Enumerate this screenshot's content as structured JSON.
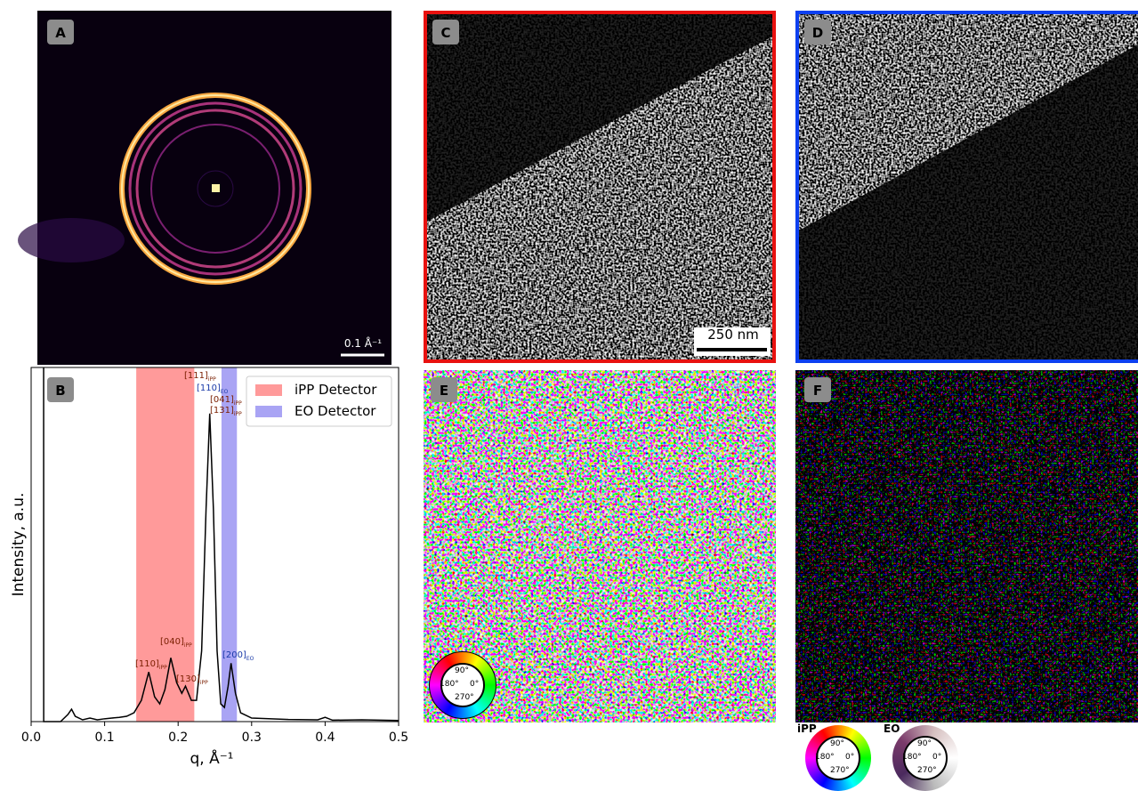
{
  "panels": {
    "A": {
      "label": "A",
      "scale_bar": "0.1 Å⁻¹"
    },
    "B": {
      "label": "B"
    },
    "C": {
      "label": "C",
      "scale_bar": "250 nm"
    },
    "D": {
      "label": "D"
    },
    "E": {
      "label": "E"
    },
    "F": {
      "label": "F",
      "wheels": [
        "iPP",
        "EO"
      ]
    }
  },
  "wheel_labels": [
    "90°",
    "180°",
    "0°",
    "270°"
  ],
  "chart_data": {
    "type": "line",
    "xlabel": "q, Å⁻¹",
    "ylabel": "Intensity, a.u.",
    "color": "#000000",
    "x": [
      0.017,
      0.0171,
      0.02,
      0.04,
      0.05,
      0.055,
      0.06,
      0.07,
      0.08,
      0.09,
      0.1,
      0.11,
      0.12,
      0.13,
      0.14,
      0.15,
      0.16,
      0.168,
      0.175,
      0.182,
      0.19,
      0.198,
      0.205,
      0.21,
      0.218,
      0.225,
      0.232,
      0.238,
      0.243,
      0.248,
      0.253,
      0.258,
      0.263,
      0.268,
      0.272,
      0.278,
      0.285,
      0.3,
      0.35,
      0.39,
      0.4,
      0.41,
      0.45,
      0.5
    ],
    "values": [
      1.0,
      0.0,
      0.0,
      0.0,
      0.02,
      0.035,
      0.015,
      0.005,
      0.01,
      0.005,
      0.008,
      0.01,
      0.012,
      0.015,
      0.025,
      0.06,
      0.14,
      0.07,
      0.05,
      0.09,
      0.18,
      0.11,
      0.08,
      0.1,
      0.06,
      0.06,
      0.2,
      0.6,
      0.87,
      0.6,
      0.2,
      0.05,
      0.04,
      0.1,
      0.165,
      0.08,
      0.025,
      0.01,
      0.006,
      0.005,
      0.012,
      0.004,
      0.005,
      0.003
    ],
    "xlim": [
      0,
      0.5
    ],
    "ylim": [
      0,
      1
    ],
    "xticks": [
      {
        "value": 0,
        "label": "0.0"
      },
      0.1,
      0.2,
      0.3,
      0.4,
      0.5
    ],
    "bands": [
      {
        "name": "iPP Detector",
        "color": "#ff9a9a",
        "range": [
          0.143,
          0.222
        ]
      },
      {
        "name": "EO Detector",
        "color": "#a9a4f4",
        "range": [
          0.259,
          0.28
        ]
      }
    ],
    "legend": "upper right",
    "annotations": [
      {
        "text": "[111]",
        "sub": "iPP"
      },
      {
        "text": "[110]",
        "sub": "EO"
      },
      {
        "text": "[041]",
        "sub": "iPP"
      },
      {
        "text": "[131]",
        "sub": "iPP"
      },
      {
        "text": "[040]",
        "sub": "iPP"
      },
      {
        "text": "[110]",
        "sub": "iPP"
      },
      {
        "text": "[130]",
        "sub": "iPP"
      },
      {
        "text": "[200]",
        "sub": "EO"
      }
    ]
  }
}
